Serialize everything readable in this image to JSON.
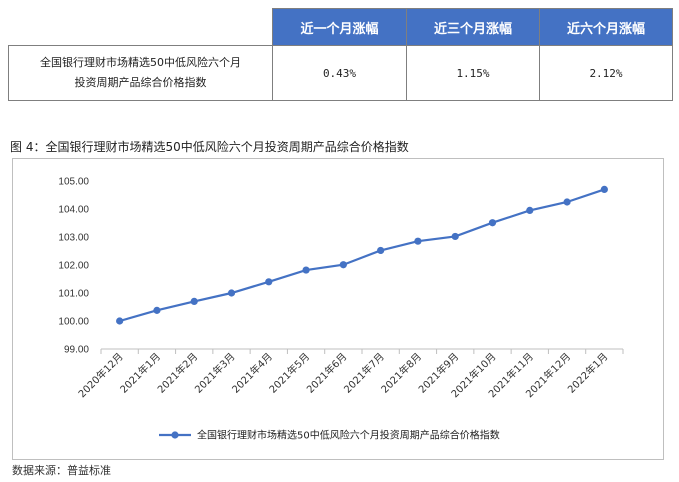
{
  "table": {
    "headers": [
      "",
      "近一个月涨幅",
      "近三个月涨幅",
      "近六个月涨幅"
    ],
    "row": {
      "name_line1": "全国银行理财市场精选50中低风险六个月",
      "name_line2": "投资周期产品综合价格指数",
      "values": [
        "0.43%",
        "1.15%",
        "2.12%"
      ]
    }
  },
  "figure": {
    "title": "图 4：全国银行理财市场精选50中低风险六个月投资周期产品综合价格指数"
  },
  "chart_data": {
    "type": "line",
    "categories": [
      "2020年12月",
      "2021年1月",
      "2021年2月",
      "2021年3月",
      "2021年4月",
      "2021年5月",
      "2021年6月",
      "2021年7月",
      "2021年8月",
      "2021年9月",
      "2021年10月",
      "2021年11月",
      "2021年12月",
      "2022年1月"
    ],
    "series": [
      {
        "name": "全国银行理财市场精选50中低风险六个月投资周期产品综合价格指数",
        "color": "#4472c4",
        "values": [
          100.0,
          100.38,
          100.7,
          101.0,
          101.4,
          101.82,
          102.01,
          102.52,
          102.85,
          103.02,
          103.51,
          103.95,
          104.25,
          104.7
        ]
      }
    ],
    "ylim": [
      99.0,
      105.0
    ],
    "yticks": [
      "99.00",
      "100.00",
      "101.00",
      "102.00",
      "103.00",
      "104.00",
      "105.00"
    ],
    "grid": false,
    "legend": "bottom"
  },
  "source": "数据来源：普益标准"
}
